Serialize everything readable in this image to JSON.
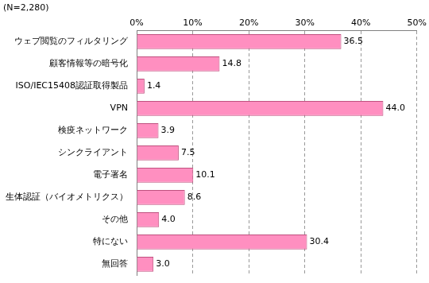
{
  "chart_data": {
    "type": "bar",
    "orientation": "horizontal",
    "title": "(N=2,280)",
    "categories": [
      "ウェブ閲覧のフィルタリング",
      "顧客情報等の暗号化",
      "ISO/IEC15408認証取得製品",
      "VPN",
      "検疫ネットワーク",
      "シンクライアント",
      "電子署名",
      "生体認証（バイオメトリクス）",
      "その他",
      "特にない",
      "無回答"
    ],
    "values": [
      36.5,
      14.8,
      1.4,
      44.0,
      3.9,
      7.5,
      10.1,
      8.6,
      4.0,
      30.4,
      3.0
    ],
    "value_labels": [
      "36.5",
      "14.8",
      "1.4",
      "44.0",
      "3.9",
      "7.5",
      "10.1",
      "8.6",
      "4.0",
      "30.4",
      "3.0"
    ],
    "data_labels": true,
    "color": "#ff8fc0",
    "xlim": [
      0,
      50
    ],
    "xticks": [
      {
        "value": 0,
        "label": "0%"
      },
      {
        "value": 10,
        "label": "10%"
      },
      {
        "value": 20,
        "label": "20%"
      },
      {
        "value": 30,
        "label": "30%"
      },
      {
        "value": 40,
        "label": "40%"
      },
      {
        "value": 50,
        "label": "50%"
      }
    ],
    "grid": true
  }
}
